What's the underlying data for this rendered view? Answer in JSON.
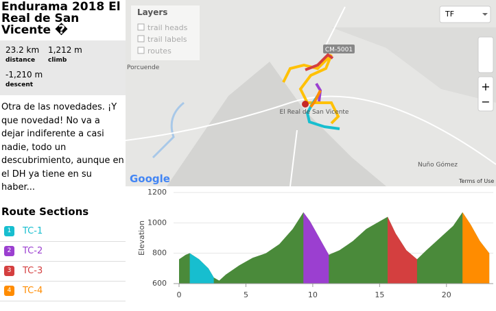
{
  "sidebar": {
    "title": "Endurama 2018 El Real de San Vicente �",
    "stats": [
      {
        "value": "23.2 km",
        "label": "distance"
      },
      {
        "value": "1,212 m",
        "label": "climb"
      },
      {
        "value": "-1,210 m",
        "label": "descent"
      }
    ],
    "description": "Otra de las novedades. ¡Y que novedad! No va a dejar indiferente a casi nadie, todo un descubrimiento, aunque en el DH ya tiene en su haber...",
    "sections_heading": "Route Sections",
    "sections": [
      {
        "number": "1",
        "name": "TC-1",
        "color": "#17becf"
      },
      {
        "number": "2",
        "name": "TC-2",
        "color": "#9b3fd0"
      },
      {
        "number": "3",
        "name": "TC-3",
        "color": "#d43f3f"
      },
      {
        "number": "4",
        "name": "TC-4",
        "color": "#ff8c00"
      }
    ]
  },
  "map": {
    "layers_title": "Layers",
    "layers": [
      "trail heads",
      "trail labels",
      "routes"
    ],
    "select": "TF",
    "road_label": "CM-5001",
    "place_labels": [
      "El Real de San Vicente",
      "Nuño Gómez",
      "Porcuende"
    ],
    "logo": "Google",
    "terms": "Terms of Use"
  },
  "chart_data": {
    "type": "area",
    "y_label": "Elevation",
    "color": "#4a8a3a",
    "x": [
      0,
      0.5,
      0.8,
      1.5,
      2.2,
      2.6,
      3,
      3.5,
      4.5,
      5.5,
      6.5,
      7.5,
      8.5,
      9.3,
      9.8,
      10.5,
      11.2,
      12,
      13,
      14,
      15,
      15.6,
      16.2,
      17,
      17.8,
      18.5,
      19.5,
      20.5,
      21.2,
      21.8,
      22.5,
      23.2
    ],
    "values": [
      760,
      790,
      800,
      760,
      700,
      640,
      620,
      660,
      720,
      770,
      800,
      860,
      960,
      1070,
      1010,
      900,
      790,
      820,
      880,
      960,
      1010,
      1040,
      930,
      820,
      760,
      820,
      900,
      980,
      1070,
      990,
      880,
      800
    ],
    "sections": [
      {
        "start": 0.8,
        "end": 2.6,
        "color": "#17becf"
      },
      {
        "start": 9.3,
        "end": 11.2,
        "color": "#9b3fd0"
      },
      {
        "start": 15.6,
        "end": 17.8,
        "color": "#d43f3f"
      },
      {
        "start": 21.2,
        "end": 23.2,
        "color": "#ff8c00"
      }
    ],
    "xlim": [
      0,
      23.5
    ],
    "ylim": [
      600,
      1200
    ],
    "xticks": [
      0,
      5,
      10,
      15,
      20
    ],
    "yticks": [
      600,
      800,
      1000,
      1200
    ],
    "grid": true
  }
}
